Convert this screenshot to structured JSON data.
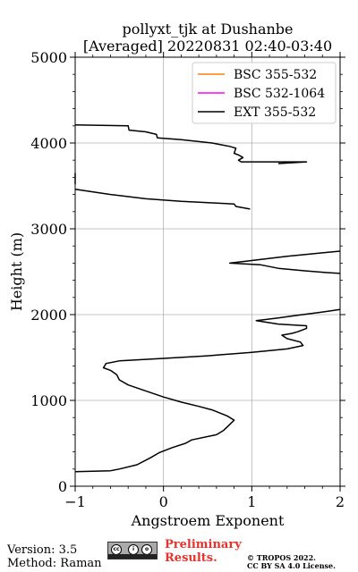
{
  "title": {
    "line1": "pollyxt_tjk at Dushanbe",
    "line2": "[Averaged] 20220831 02:40-03:40"
  },
  "footer": {
    "version": "Version: 3.5",
    "method": "Method: Raman",
    "preliminary_line1": "Preliminary",
    "preliminary_line2": "Results.",
    "copyright_line1": "© TROPOS 2022.",
    "copyright_line2": "CC BY SA 4.0 License.",
    "license_badge_icon": "cc-by-sa-icon"
  },
  "chart_data": {
    "type": "line",
    "title": "pollyxt_tjk at Dushanbe [Averaged] 20220831 02:40-03:40",
    "xlabel": "Angstroem Exponent",
    "ylabel": "Height (m)",
    "xlim": [
      -1,
      2
    ],
    "ylim": [
      0,
      5000
    ],
    "xticks": [
      -1,
      0,
      1,
      2
    ],
    "xtick_labels": [
      "−1",
      "0",
      "1",
      "2"
    ],
    "yticks": [
      0,
      1000,
      2000,
      3000,
      4000,
      5000
    ],
    "ytick_labels": [
      "0",
      "1000",
      "2000",
      "3000",
      "4000",
      "5000"
    ],
    "grid": true,
    "legend_position": "top-right",
    "series": [
      {
        "name": "BSC 355-532",
        "color": "#ff7f0e",
        "points": []
      },
      {
        "name": "BSC 532-1064",
        "color": "#ff00ff",
        "points": []
      },
      {
        "name": "EXT 355-532",
        "color": "#000000",
        "segments": [
          [
            [
              -1.0,
              170
            ],
            [
              -0.6,
              180
            ],
            [
              -0.5,
              200
            ],
            [
              -0.3,
              250
            ],
            [
              -0.15,
              330
            ],
            [
              -0.05,
              390
            ],
            [
              0.1,
              450
            ],
            [
              0.25,
              500
            ],
            [
              0.32,
              540
            ],
            [
              0.6,
              600
            ],
            [
              0.68,
              650
            ],
            [
              0.75,
              720
            ],
            [
              0.8,
              770
            ],
            [
              0.72,
              820
            ],
            [
              0.55,
              890
            ],
            [
              0.4,
              930
            ],
            [
              0.2,
              980
            ],
            [
              0.0,
              1040
            ],
            [
              -0.2,
              1110
            ],
            [
              -0.4,
              1180
            ],
            [
              -0.5,
              1240
            ],
            [
              -0.53,
              1300
            ],
            [
              -0.6,
              1350
            ],
            [
              -0.68,
              1380
            ],
            [
              -0.65,
              1430
            ],
            [
              -0.5,
              1460
            ],
            [
              0.0,
              1490
            ],
            [
              0.5,
              1520
            ],
            [
              1.0,
              1560
            ],
            [
              1.4,
              1600
            ],
            [
              1.58,
              1640
            ],
            [
              1.55,
              1680
            ],
            [
              1.4,
              1720
            ],
            [
              1.34,
              1760
            ],
            [
              1.45,
              1780
            ],
            [
              1.52,
              1800
            ],
            [
              1.62,
              1840
            ],
            [
              1.62,
              1870
            ],
            [
              1.3,
              1890
            ],
            [
              1.05,
              1930
            ],
            [
              1.3,
              1960
            ],
            [
              1.5,
              1990
            ],
            [
              1.8,
              2030
            ],
            [
              2.0,
              2060
            ]
          ],
          [
            [
              2.0,
              2480
            ],
            [
              1.85,
              2490
            ],
            [
              1.6,
              2510
            ],
            [
              1.3,
              2540
            ],
            [
              1.1,
              2580
            ],
            [
              0.75,
              2600
            ],
            [
              1.0,
              2630
            ],
            [
              1.4,
              2680
            ],
            [
              1.8,
              2720
            ],
            [
              2.0,
              2740
            ]
          ],
          [
            [
              -1.0,
              3460
            ],
            [
              -0.6,
              3400
            ],
            [
              -0.2,
              3350
            ],
            [
              0.2,
              3320
            ],
            [
              0.8,
              3290
            ],
            [
              0.82,
              3260
            ],
            [
              0.98,
              3230
            ]
          ],
          [
            [
              -1.0,
              3520
            ],
            [
              -1.0,
              3650
            ]
          ],
          [
            [
              -1.0,
              4210
            ],
            [
              -0.4,
              4200
            ],
            [
              -0.39,
              4150
            ],
            [
              -0.2,
              4130
            ],
            [
              -0.08,
              4100
            ],
            [
              -0.07,
              4060
            ],
            [
              0.2,
              4040
            ],
            [
              0.55,
              4000
            ],
            [
              0.75,
              3960
            ],
            [
              0.82,
              3940
            ],
            [
              0.8,
              3880
            ],
            [
              0.85,
              3860
            ],
            [
              0.9,
              3830
            ],
            [
              0.85,
              3800
            ],
            [
              0.88,
              3780
            ],
            [
              1.3,
              3780
            ],
            [
              1.62,
              3780
            ],
            [
              1.3,
              3760
            ]
          ]
        ]
      }
    ]
  }
}
